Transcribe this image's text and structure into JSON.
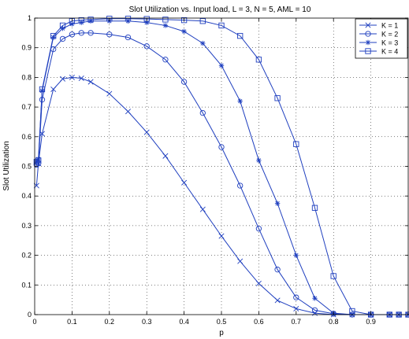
{
  "chart_data": {
    "type": "line",
    "title": "Slot Utilization vs. Input load, L = 3, N = 5, AML = 10",
    "xlabel": "p",
    "ylabel": "Slot Utilization",
    "xlim": [
      0,
      1
    ],
    "ylim": [
      0,
      1
    ],
    "xticks": [
      0,
      0.1,
      0.2,
      0.3,
      0.4,
      0.5,
      0.6,
      0.7,
      0.8,
      0.9
    ],
    "xtick_labels": [
      "0",
      "0.1",
      "0.2",
      "0.3",
      "0.4",
      "0.5",
      "0.6",
      "0.7",
      "0.8",
      "0.9"
    ],
    "yticks": [
      0,
      0.1,
      0.2,
      0.3,
      0.4,
      0.5,
      0.6,
      0.7,
      0.8,
      0.9,
      1
    ],
    "ytick_labels": [
      "0",
      "0.1",
      "0.2",
      "0.3",
      "0.4",
      "0.5",
      "0.6",
      "0.7",
      "0.8",
      "0.9",
      "1"
    ],
    "grid": true,
    "legend_position": "top-right",
    "line_color": "#1f3fbf",
    "series": [
      {
        "name": "K = 1",
        "marker": "x",
        "x": [
          0.005,
          0.01,
          0.02,
          0.05,
          0.075,
          0.1,
          0.125,
          0.15,
          0.2,
          0.25,
          0.3,
          0.35,
          0.4,
          0.45,
          0.5,
          0.55,
          0.6,
          0.65,
          0.7,
          0.75,
          0.8,
          0.85,
          0.9,
          0.95,
          0.975,
          1.0
        ],
        "values": [
          0.435,
          0.51,
          0.61,
          0.76,
          0.795,
          0.8,
          0.797,
          0.785,
          0.745,
          0.685,
          0.615,
          0.535,
          0.445,
          0.355,
          0.265,
          0.18,
          0.105,
          0.048,
          0.02,
          0.005,
          0.0,
          0.0,
          0.0,
          0.0,
          0.0,
          0.0
        ]
      },
      {
        "name": "K = 2",
        "marker": "o",
        "x": [
          0.005,
          0.01,
          0.02,
          0.05,
          0.075,
          0.1,
          0.125,
          0.15,
          0.2,
          0.25,
          0.3,
          0.35,
          0.4,
          0.45,
          0.5,
          0.55,
          0.6,
          0.65,
          0.7,
          0.75,
          0.8,
          0.85,
          0.9,
          0.95,
          0.975,
          1.0
        ],
        "values": [
          0.505,
          0.51,
          0.725,
          0.895,
          0.93,
          0.945,
          0.95,
          0.95,
          0.945,
          0.935,
          0.905,
          0.86,
          0.785,
          0.68,
          0.565,
          0.435,
          0.29,
          0.152,
          0.058,
          0.015,
          0.003,
          0.0,
          0.0,
          0.0,
          0.0,
          0.0
        ]
      },
      {
        "name": "K = 3",
        "marker": "*",
        "x": [
          0.005,
          0.01,
          0.02,
          0.05,
          0.075,
          0.1,
          0.125,
          0.15,
          0.2,
          0.25,
          0.3,
          0.35,
          0.4,
          0.45,
          0.5,
          0.55,
          0.6,
          0.65,
          0.7,
          0.75,
          0.8,
          0.85,
          0.9,
          0.95,
          0.975,
          1.0
        ],
        "values": [
          0.515,
          0.525,
          0.755,
          0.935,
          0.965,
          0.98,
          0.985,
          0.99,
          0.99,
          0.99,
          0.985,
          0.975,
          0.955,
          0.915,
          0.84,
          0.72,
          0.52,
          0.375,
          0.2,
          0.055,
          0.005,
          0.0,
          0.0,
          0.0,
          0.0,
          0.0
        ]
      },
      {
        "name": "K = 4",
        "marker": "s",
        "x": [
          0.005,
          0.01,
          0.02,
          0.05,
          0.075,
          0.1,
          0.125,
          0.15,
          0.2,
          0.25,
          0.3,
          0.35,
          0.4,
          0.45,
          0.5,
          0.55,
          0.6,
          0.65,
          0.7,
          0.75,
          0.8,
          0.85,
          0.9,
          0.95,
          0.975,
          1.0
        ],
        "values": [
          0.515,
          0.52,
          0.76,
          0.94,
          0.975,
          0.99,
          0.993,
          0.995,
          0.998,
          0.998,
          0.997,
          0.995,
          0.993,
          0.99,
          0.975,
          0.94,
          0.86,
          0.73,
          0.575,
          0.36,
          0.13,
          0.012,
          0.0,
          0.0,
          0.0,
          0.0
        ]
      }
    ]
  }
}
